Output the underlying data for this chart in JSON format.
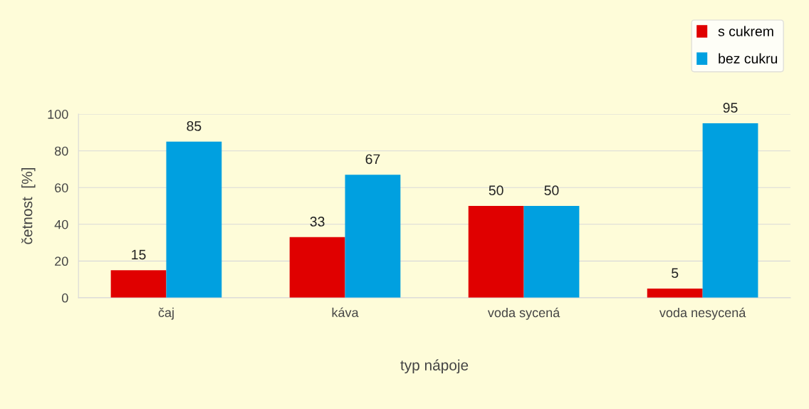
{
  "chart_data": {
    "type": "bar",
    "xlabel": "typ nápoje",
    "ylabel": "četnost  [%]",
    "categories": [
      "čaj",
      "káva",
      "voda sycená",
      "voda nesycená"
    ],
    "series": [
      {
        "name": "s cukrem",
        "color": "#e00000",
        "values": [
          15,
          33,
          50,
          5
        ]
      },
      {
        "name": "bez cukru",
        "color": "#00a0e0",
        "values": [
          85,
          67,
          50,
          95
        ]
      }
    ],
    "ylim": [
      0,
      100
    ],
    "yticks": [
      0,
      20,
      40,
      60,
      80,
      100
    ],
    "grid": "y",
    "legend": "top right",
    "data_labels": true
  }
}
